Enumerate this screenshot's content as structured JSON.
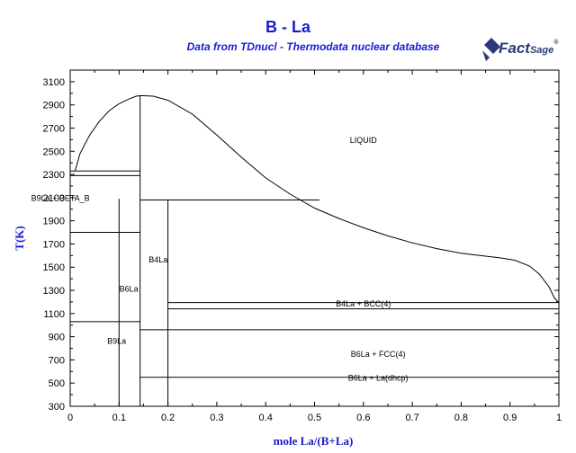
{
  "header": {
    "title": "B - La",
    "subtitle": "Data from TDnucl - Thermodata nuclear database",
    "logo_main": "Fact",
    "logo_sage": "Sage",
    "logo_reg": "®"
  },
  "colors": {
    "title": "#1a1ad4",
    "lines": "#000000",
    "logo": "#2a3a7a"
  },
  "chart_data": {
    "type": "phase-diagram",
    "title": "B - La",
    "xlabel": "mole La/(B+La)",
    "ylabel": "T(K)",
    "xlim": [
      0,
      1
    ],
    "ylim": [
      300,
      3200
    ],
    "x_ticks": [
      "0",
      "0.1",
      "0.2",
      "0.3",
      "0.4",
      "0.5",
      "0.6",
      "0.7",
      "0.8",
      "0.9",
      "1"
    ],
    "y_ticks": [
      "300",
      "500",
      "700",
      "900",
      "1100",
      "1300",
      "1500",
      "1700",
      "1900",
      "2100",
      "2300",
      "2500",
      "2700",
      "2900",
      "3100"
    ],
    "liquidus": [
      [
        0.01,
        2330
      ],
      [
        0.02,
        2480
      ],
      [
        0.04,
        2640
      ],
      [
        0.06,
        2760
      ],
      [
        0.08,
        2850
      ],
      [
        0.1,
        2910
      ],
      [
        0.12,
        2950
      ],
      [
        0.135,
        2975
      ],
      [
        0.145,
        2980
      ],
      [
        0.145,
        2980
      ],
      [
        0.17,
        2975
      ],
      [
        0.2,
        2940
      ],
      [
        0.25,
        2820
      ],
      [
        0.3,
        2640
      ],
      [
        0.35,
        2450
      ],
      [
        0.4,
        2270
      ],
      [
        0.45,
        2130
      ],
      [
        0.5,
        2010
      ],
      [
        0.55,
        1920
      ],
      [
        0.6,
        1840
      ],
      [
        0.65,
        1770
      ],
      [
        0.7,
        1710
      ],
      [
        0.75,
        1660
      ],
      [
        0.8,
        1620
      ],
      [
        0.85,
        1595
      ],
      [
        0.88,
        1580
      ],
      [
        0.91,
        1560
      ],
      [
        0.94,
        1510
      ],
      [
        0.96,
        1440
      ],
      [
        0.98,
        1330
      ],
      [
        0.99,
        1240
      ],
      [
        1.0,
        1190
      ]
    ],
    "vertical_lines": [
      {
        "x": 0.1,
        "y_from": 300,
        "y_to": 2090
      },
      {
        "x": 0.143,
        "y_from": 300,
        "y_to": 2980
      },
      {
        "x": 0.2,
        "y_from": 300,
        "y_to": 2080
      }
    ],
    "horizontal_lines": [
      {
        "y": 2330,
        "x_from": 0.0,
        "x_to": 0.143
      },
      {
        "y": 2290,
        "x_from": 0.0,
        "x_to": 0.143
      },
      {
        "y": 1800,
        "x_from": 0.0,
        "x_to": 0.143
      },
      {
        "y": 1030,
        "x_from": 0.0,
        "x_to": 0.143
      },
      {
        "y": 2080,
        "x_from": 0.143,
        "x_to": 0.51
      },
      {
        "y": 1195,
        "x_from": 0.2,
        "x_to": 1.0
      },
      {
        "y": 1140,
        "x_from": 0.2,
        "x_to": 1.0
      },
      {
        "y": 960,
        "x_from": 0.143,
        "x_to": 1.0
      },
      {
        "y": 550,
        "x_from": 0.143,
        "x_to": 1.0
      }
    ],
    "region_labels": [
      {
        "text": "LIQUID",
        "x": 0.6,
        "y": 2570
      },
      {
        "text": "B9La + BETA_B",
        "x": -0.02,
        "y": 2070
      },
      {
        "text": "B4La",
        "x": 0.18,
        "y": 1540
      },
      {
        "text": "B6La",
        "x": 0.12,
        "y": 1290
      },
      {
        "text": "B4La + BCC(4)",
        "x": 0.6,
        "y": 1160
      },
      {
        "text": "B9La",
        "x": 0.095,
        "y": 840
      },
      {
        "text": "B6La + FCC(4)",
        "x": 0.63,
        "y": 725
      },
      {
        "text": "B6La + La(dhcp)",
        "x": 0.63,
        "y": 520
      }
    ],
    "grid": false,
    "frame": true
  }
}
